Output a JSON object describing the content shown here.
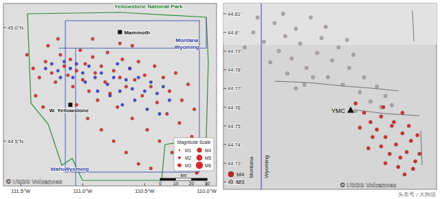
{
  "chart_data": [
    {
      "type": "scatter",
      "xlim": [
        -111.64,
        -109.92
      ],
      "ylim": [
        44.303,
        45.106
      ],
      "xticks": [
        {
          "value": -111.5,
          "label": "111.5°W"
        },
        {
          "value": -111.0,
          "label": "111.0°W"
        },
        {
          "value": -110.5,
          "label": "110.5°W"
        },
        {
          "value": -110.0,
          "label": "110.0°W"
        }
      ],
      "yticks": [
        {
          "value": 44.5,
          "label": "44.5°N"
        },
        {
          "value": 45.0,
          "label": "45.0°N"
        }
      ],
      "series": [
        {
          "color": "#d42a2a",
          "marker": "circle",
          "x": [
            -111.4,
            -111.35,
            -111.3,
            -111.25,
            -111.22,
            -111.18,
            -111.15,
            -111.12,
            -111.1,
            -111.08,
            -111.05,
            -111.02,
            -111.0,
            -110.98,
            -110.95,
            -110.92,
            -110.9,
            -110.88,
            -110.85,
            -110.82,
            -110.8,
            -110.78,
            -110.75,
            -110.72,
            -110.7,
            -110.68,
            -110.65,
            -110.62,
            -110.6,
            -110.58,
            -110.55,
            -110.52,
            -110.5,
            -110.48,
            -110.45,
            -110.42,
            -110.4,
            -110.38,
            -110.35,
            -110.32,
            -110.3,
            -110.28,
            -110.25,
            -110.22,
            -110.2,
            -110.18,
            -110.15,
            -110.12,
            -110.1,
            -110.08,
            -111.38,
            -111.32,
            -111.28,
            -111.2,
            -111.05,
            -110.96,
            -110.85,
            -110.75,
            -110.65,
            -110.55,
            -110.45,
            -110.92,
            -110.7,
            -111.45,
            -110.6
          ],
          "y": [
            44.82,
            44.78,
            44.85,
            44.8,
            44.76,
            44.88,
            44.83,
            44.79,
            44.86,
            44.74,
            44.81,
            44.9,
            44.77,
            44.84,
            44.72,
            44.87,
            44.8,
            44.68,
            44.83,
            44.76,
            44.89,
            44.71,
            44.81,
            44.65,
            44.78,
            44.86,
            44.74,
            44.82,
            44.6,
            44.77,
            44.85,
            44.7,
            44.79,
            44.55,
            44.74,
            44.83,
            44.67,
            44.5,
            44.78,
            44.62,
            44.72,
            44.45,
            44.8,
            44.58,
            44.68,
            44.4,
            44.75,
            44.52,
            44.64,
            44.36,
            44.7,
            44.65,
            44.92,
            44.95,
            44.66,
            44.6,
            44.55,
            44.5,
            44.45,
            44.4,
            44.38,
            44.95,
            44.93,
            44.88,
            44.92
          ]
        },
        {
          "color": "#2b3fd6",
          "marker": "circle",
          "x": [
            -111.3,
            -111.25,
            -111.2,
            -111.15,
            -111.1,
            -111.05,
            -111.0,
            -110.95,
            -110.9,
            -110.85,
            -110.8,
            -110.75,
            -110.7,
            -110.65,
            -110.6,
            -110.55,
            -110.5,
            -110.45,
            -110.4,
            -110.35,
            -110.3,
            -111.08,
            -110.98,
            -110.88,
            -110.78,
            -110.68,
            -110.58,
            -110.48,
            -110.38,
            -111.18,
            -110.72,
            -110.62
          ],
          "y": [
            44.82,
            44.84,
            44.81,
            44.85,
            44.82,
            44.84,
            44.8,
            44.83,
            44.78,
            44.8,
            44.75,
            44.78,
            44.72,
            44.77,
            44.73,
            44.78,
            44.72,
            44.76,
            44.71,
            44.74,
            44.68,
            44.78,
            44.76,
            44.72,
            44.7,
            44.66,
            44.68,
            44.64,
            44.62,
            44.78,
            44.84,
            44.82
          ]
        }
      ],
      "annotations": [
        {
          "text": "Yellowstone National Park",
          "x": -110.47,
          "y": 45.085
        },
        {
          "text": "Mammoth",
          "x": -110.7,
          "y": 44.98,
          "marker": "square"
        },
        {
          "text": "W. Yellowstone",
          "x": -111.1,
          "y": 44.66,
          "marker": "square"
        },
        {
          "text": "Montana",
          "x": -110.16,
          "y": 44.935
        },
        {
          "text": "Wyoming",
          "x": -110.16,
          "y": 44.905
        },
        {
          "text": "Idaho",
          "x": -111.2,
          "y": 44.37
        },
        {
          "text": "Wyoming",
          "x": -111.05,
          "y": 44.37
        }
      ],
      "legend": "lower right",
      "legend_title": "Magnitude Scale",
      "legend_labels": [
        "M1",
        "M2",
        "M3",
        "M4",
        "M5",
        "M6"
      ],
      "scale_bar": {
        "label": "km",
        "ticks": [
          0,
          10,
          20,
          30
        ]
      },
      "source": "© USGS Volcanoes"
    },
    {
      "type": "scatter",
      "xlim": [
        -111.074,
        -110.974
      ],
      "ylim": [
        44.716,
        44.8155
      ],
      "tick_labels": "y",
      "yticks": [
        {
          "value": 44.72,
          "label": "44.72°"
        },
        {
          "value": 44.73,
          "label": "44.73°"
        },
        {
          "value": 44.74,
          "label": "44.74°"
        },
        {
          "value": 44.75,
          "label": "44.75°"
        },
        {
          "value": 44.76,
          "label": "44.76°"
        },
        {
          "value": 44.77,
          "label": "44.77°"
        },
        {
          "value": 44.78,
          "label": "44.78°"
        },
        {
          "value": 44.79,
          "label": "44.79°"
        },
        {
          "value": 44.8,
          "label": "44.8°"
        },
        {
          "value": 44.81,
          "label": "44.81°"
        }
      ],
      "series": [
        {
          "color": "#a3a3a3",
          "marker": "circle",
          "x": [
            -111.06,
            -111.055,
            -111.05,
            -111.048,
            -111.045,
            -111.042,
            -111.04,
            -111.038,
            -111.035,
            -111.033,
            -111.03,
            -111.028,
            -111.025,
            -111.023,
            -111.02,
            -111.018,
            -111.015,
            -111.013,
            -111.01,
            -111.008,
            -111.005,
            -111.002,
            -111.0,
            -110.998,
            -111.052,
            -111.044,
            -111.036,
            -111.058,
            -111.046,
            -111.032,
            -111.026,
            -111.016,
            -111.064,
            -111.012,
            -110.995,
            -111.04
          ],
          "y": [
            44.8,
            44.795,
            44.805,
            44.79,
            44.798,
            44.786,
            44.802,
            44.794,
            44.781,
            44.808,
            44.789,
            44.797,
            44.776,
            44.785,
            44.792,
            44.772,
            44.781,
            44.788,
            44.768,
            44.776,
            44.763,
            44.771,
            44.76,
            44.766,
            44.784,
            44.778,
            44.772,
            44.808,
            44.81,
            44.776,
            44.803,
            44.796,
            44.792,
            44.758,
            44.761,
            44.77
          ]
        },
        {
          "color": "#c42424",
          "marker": "circle",
          "x": [
            -111.012,
            -111.008,
            -111.005,
            -111.002,
            -111.0,
            -110.998,
            -110.995,
            -110.993,
            -110.99,
            -110.988,
            -110.986,
            -110.984,
            -110.996,
            -111.0,
            -111.004,
            -110.992,
            -110.989,
            -110.985,
            -110.982,
            -110.994,
            -110.99,
            -111.006,
            -110.998,
            -110.987,
            -110.983,
            -111.01,
            -110.999,
            -110.991
          ],
          "y": [
            44.762,
            44.757,
            44.752,
            44.748,
            44.755,
            44.744,
            44.75,
            44.74,
            44.746,
            44.736,
            44.742,
            44.731,
            44.735,
            44.739,
            44.744,
            44.728,
            44.724,
            44.727,
            44.735,
            44.752,
            44.757,
            44.738,
            44.73,
            44.75,
            44.745,
            44.749,
            44.76,
            44.733
          ]
        }
      ],
      "annotations": [
        {
          "text": "YMC",
          "x": -111.0143,
          "y": 44.7585,
          "marker": "triangle"
        },
        {
          "text": "Montana",
          "x": -111.06,
          "y": 44.722
        },
        {
          "text": "Wyoming",
          "x": -111.053,
          "y": 44.722
        }
      ],
      "legend": "lower left",
      "legend_labels": [
        "M4",
        "M3"
      ],
      "source": "© USGS Volcanoes"
    }
  ],
  "watermark": "头条号 / 大狗说"
}
